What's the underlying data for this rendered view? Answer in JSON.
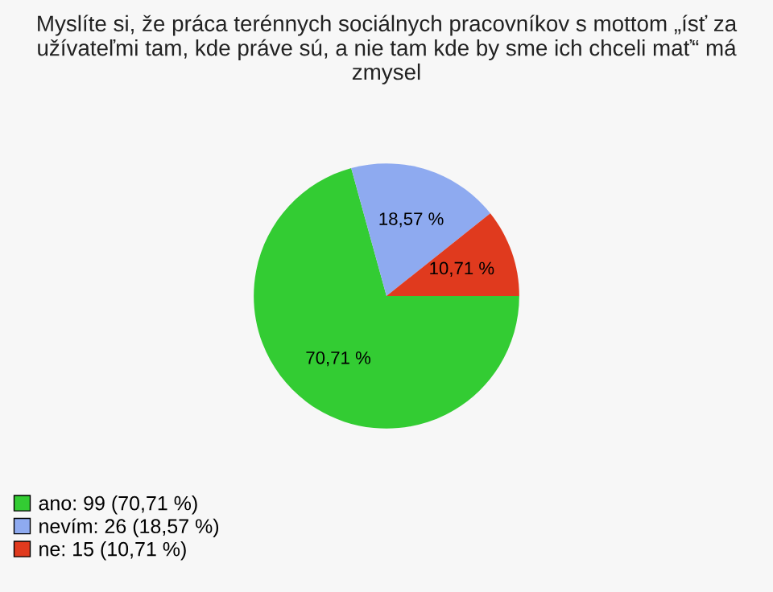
{
  "chart_data": {
    "type": "pie",
    "title": "Myslíte si, že práca terénnych sociálnych pracovníkov s mottom „ísť za užívateľmi tam, kde práve sú, a nie tam kde by sme ich chceli mať“ má zmysel",
    "categories": [
      "ano: 99 (70,71 %)",
      "nevím: 26 (18,57 %)",
      "ne: 15 (10,71 %)"
    ],
    "values": [
      70.71,
      18.57,
      10.71
    ],
    "colors": [
      "#33cc33",
      "#8eaaf0",
      "#e03a1e"
    ],
    "value_labels": [
      "70,71 %",
      "18,57 %",
      "10,71 %"
    ],
    "legend": "bottom left"
  }
}
